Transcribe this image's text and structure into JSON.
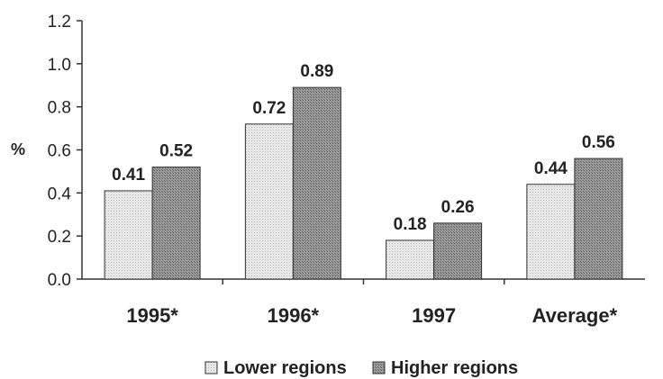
{
  "chart_data": {
    "type": "bar",
    "categories": [
      "1995*",
      "1996*",
      "1997",
      "Average*"
    ],
    "series": [
      {
        "name": "Lower regions",
        "values": [
          0.41,
          0.72,
          0.18,
          0.44
        ],
        "labels": [
          "0.41",
          "0.72",
          "0.18",
          "0.44"
        ],
        "color": "#e2e2e2"
      },
      {
        "name": "Higher regions",
        "values": [
          0.52,
          0.89,
          0.26,
          0.56
        ],
        "labels": [
          "0.52",
          "0.89",
          "0.26",
          "0.56"
        ],
        "color": "#8c8c8c"
      }
    ],
    "ylabel": "%",
    "ylim": [
      0,
      1.2
    ],
    "yticks": [
      "0.0",
      "0.2",
      "0.4",
      "0.6",
      "0.8",
      "1.0",
      "1.2"
    ],
    "grid": false,
    "legend_position": "bottom"
  }
}
